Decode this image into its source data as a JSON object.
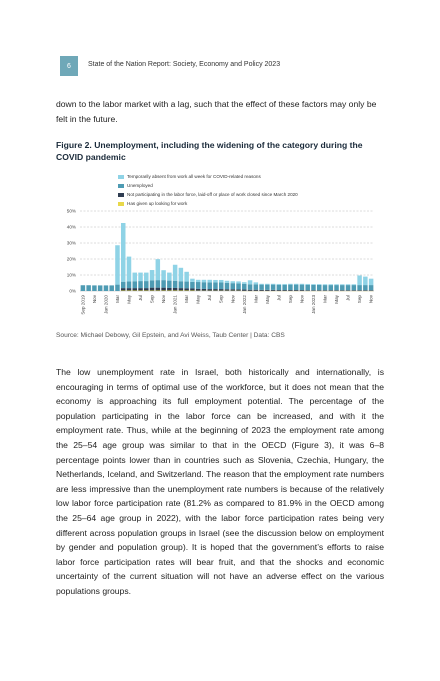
{
  "header": {
    "page_number": "6",
    "running_head": "State of the Nation Report: Society, Economy and Policy 2023"
  },
  "intro_paragraph": "down to the labor market with a lag, such that the effect of these factors may only be felt in the future.",
  "figure": {
    "title": "Figure 2. Unemployment, including the widening of the category during the COVID pandemic",
    "source": "Source: Michael Debowy, Gil Epstein, and Avi Weiss, Taub Center | Data: CBS"
  },
  "chart_data": {
    "type": "bar",
    "stacked": true,
    "legend_position": "top",
    "grid": true,
    "ylim": [
      0,
      50
    ],
    "y_ticks": [
      "50%",
      "40%",
      "30%",
      "20%",
      "10%",
      "0%"
    ],
    "x_tick_labels": [
      "Sep 2019",
      "Nov",
      "Jan 2020",
      "Mar",
      "May",
      "Jul",
      "Sep",
      "Nov",
      "Jan 2021",
      "Mar",
      "May",
      "Jul",
      "Sep",
      "Nov",
      "Jan 2022",
      "Mar",
      "May",
      "Jul",
      "Sep",
      "Nov",
      "Jan 2023",
      "Mar",
      "May",
      "Jul",
      "Sep",
      "Nov"
    ],
    "categories": [
      "Sep 2019",
      "Oct 2019",
      "Nov 2019",
      "Dec 2019",
      "Jan 2020",
      "Feb 2020",
      "Mar 2020",
      "Apr 2020",
      "May 2020",
      "Jun 2020",
      "Jul 2020",
      "Aug 2020",
      "Sep 2020",
      "Oct 2020",
      "Nov 2020",
      "Dec 2020",
      "Jan 2021",
      "Feb 2021",
      "Mar 2021",
      "Apr 2021",
      "May 2021",
      "Jun 2021",
      "Jul 2021",
      "Aug 2021",
      "Sep 2021",
      "Oct 2021",
      "Nov 2021",
      "Dec 2021",
      "Jan 2022",
      "Feb 2022",
      "Mar 2022",
      "Apr 2022",
      "May 2022",
      "Jun 2022",
      "Jul 2022",
      "Aug 2022",
      "Sep 2022",
      "Oct 2022",
      "Nov 2022",
      "Dec 2022",
      "Jan 2023",
      "Feb 2023",
      "Mar 2023",
      "Apr 2023",
      "May 2023",
      "Jun 2023",
      "Jul 2023",
      "Aug 2023",
      "Sep 2023",
      "Oct 2023",
      "Nov 2023"
    ],
    "series": [
      {
        "name": "Has given up looking for work",
        "color": "#e8d84a",
        "values": [
          0,
          0,
          0,
          0,
          0,
          0,
          0,
          0.3,
          0.3,
          0.3,
          0.3,
          0.3,
          0.3,
          0.3,
          0.3,
          0.3,
          0.3,
          0.3,
          0.3,
          0.3,
          0.2,
          0.2,
          0.2,
          0.2,
          0.2,
          0.2,
          0.2,
          0.2,
          0.1,
          0.1,
          0.1,
          0.1,
          0.1,
          0.1,
          0.1,
          0.1,
          0.1,
          0.1,
          0.1,
          0.1,
          0.1,
          0.1,
          0.1,
          0.1,
          0.1,
          0.1,
          0.1,
          0.1,
          0.1,
          0.1,
          0.1
        ]
      },
      {
        "name": "Not participating in the labor force, laid-off or place of work closed since March 2020",
        "color": "#2f3d52",
        "values": [
          0,
          0,
          0,
          0,
          0,
          0,
          0,
          1.5,
          1.5,
          1.5,
          1.5,
          1.5,
          1.8,
          1.8,
          1.8,
          1.6,
          1.6,
          1.5,
          1.4,
          1.3,
          1.2,
          1.1,
          1.0,
          1.0,
          1.0,
          0.9,
          0.9,
          0.8,
          0.8,
          0.7,
          0.7,
          0.6,
          0.6,
          0.6,
          0.5,
          0.5,
          0.5,
          0.5,
          0.5,
          0.4,
          0.4,
          0.4,
          0.4,
          0.4,
          0.4,
          0.4,
          0.4,
          0.4,
          0.4,
          0.4,
          0.4
        ]
      },
      {
        "name": "Unemployed",
        "color": "#4e9bb3",
        "values": [
          3.6,
          3.6,
          3.5,
          3.5,
          3.5,
          3.5,
          4.0,
          4.0,
          4.2,
          4.3,
          4.4,
          4.4,
          4.6,
          4.7,
          4.7,
          4.6,
          4.5,
          4.3,
          4.2,
          4.1,
          4.2,
          4.2,
          4.2,
          4.1,
          4.1,
          4.0,
          3.8,
          3.8,
          3.6,
          3.4,
          3.4,
          3.3,
          3.3,
          3.3,
          3.3,
          3.3,
          3.4,
          3.4,
          3.4,
          3.4,
          3.3,
          3.3,
          3.2,
          3.2,
          3.2,
          3.2,
          3.2,
          3.2,
          3.2,
          3.2,
          3.2
        ]
      },
      {
        "name": "Temporarily absent from work all week for COVID-related reasons",
        "color": "#8fd3e6",
        "values": [
          0,
          0,
          0,
          0,
          0,
          0,
          24.6,
          36.7,
          15.5,
          5.4,
          5.3,
          5.3,
          6.4,
          13.1,
          6.2,
          5.0,
          10.0,
          8.4,
          6.1,
          2.0,
          1.4,
          1.5,
          1.6,
          1.6,
          1.6,
          1.3,
          1.2,
          1.2,
          1.0,
          2.5,
          1.2,
          0.5,
          0.5,
          0.5,
          0.5,
          0.5,
          0.5,
          0.5,
          0.5,
          0.5,
          0.5,
          0.5,
          0.5,
          0.5,
          0.5,
          0.5,
          0.5,
          0.5,
          6.0,
          5.3,
          4.0
        ]
      }
    ]
  },
  "body_paragraph": "The low unemployment rate in Israel, both historically and internationally, is encouraging in terms of optimal use of the workforce, but it does not mean that the economy is approaching its full employment potential. The percentage of the population participating in the labor force can be increased, and with it the employment rate. Thus, while at the beginning of 2023 the employment rate among the 25–54 age group was similar to that in the OECD (Figure 3), it was 6–8 percentage points lower than in countries such as Slovenia, Czechia, Hungary, the Netherlands, Iceland, and Switzerland. The reason that the employment rate numbers are less impressive than the unemployment rate numbers is because of the relatively low labor force participation rate (81.2% as compared to 81.9% in the OECD among the 25–64 age group in 2022), with the labor force participation rates being very different across population groups in Israel (see the discussion below on employment by gender and population group). It is hoped that the government’s efforts to raise labor force participation rates will bear fruit, and that the shocks and economic uncertainty of the current situation will not have an adverse effect on the various populations groups."
}
